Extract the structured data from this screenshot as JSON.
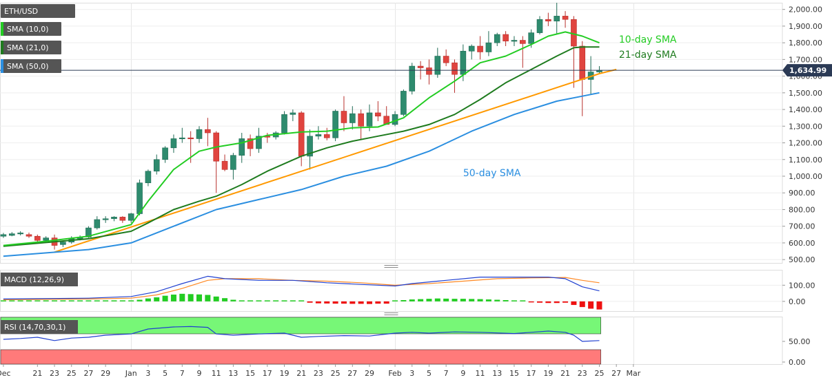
{
  "chart_data": [
    {
      "type": "candlestick",
      "labels": {
        "symbol": "ETH/USD",
        "sma10": "SMA (10,0)",
        "sma21": "SMA (21,0)",
        "sma50": "SMA (50,0)"
      },
      "annotations": {
        "sma10": "10-day SMA",
        "sma21": "21-day SMA",
        "sma50": "50-day SMA"
      },
      "last_price": 1634.99,
      "last_price_label": "1,634.99",
      "ylim": [
        480,
        2040
      ],
      "yticks": [
        500,
        600,
        700,
        800,
        900,
        1000,
        1100,
        1200,
        1300,
        1400,
        1500,
        1600,
        1700,
        1800,
        1900,
        2000
      ],
      "ytick_labels": [
        "500.00",
        "600.00",
        "700.00",
        "800.00",
        "900.00",
        "1,000.00",
        "1,100.00",
        "1,200.00",
        "1,300.00",
        "1,400.00",
        "1,500.00",
        "1,600.00",
        "1,700.00",
        "1,800.00",
        "1,900.00",
        "2,000.00"
      ],
      "xlim": [
        -0.4,
        91.5
      ],
      "xticks": [
        {
          "i": 0,
          "label": "Dec"
        },
        {
          "i": 4,
          "label": "21"
        },
        {
          "i": 6,
          "label": "23"
        },
        {
          "i": 8,
          "label": "25"
        },
        {
          "i": 10,
          "label": "27"
        },
        {
          "i": 12,
          "label": "29"
        },
        {
          "i": 15,
          "label": "Jan"
        },
        {
          "i": 17,
          "label": "3"
        },
        {
          "i": 19,
          "label": "5"
        },
        {
          "i": 21,
          "label": "7"
        },
        {
          "i": 23,
          "label": "9"
        },
        {
          "i": 25,
          "label": "11"
        },
        {
          "i": 27,
          "label": "13"
        },
        {
          "i": 29,
          "label": "15"
        },
        {
          "i": 31,
          "label": "17"
        },
        {
          "i": 33,
          "label": "19"
        },
        {
          "i": 35,
          "label": "21"
        },
        {
          "i": 37,
          "label": "23"
        },
        {
          "i": 39,
          "label": "25"
        },
        {
          "i": 41,
          "label": "27"
        },
        {
          "i": 43,
          "label": "29"
        },
        {
          "i": 46,
          "label": "Feb"
        },
        {
          "i": 48,
          "label": "3"
        },
        {
          "i": 50,
          "label": "5"
        },
        {
          "i": 52,
          "label": "7"
        },
        {
          "i": 54,
          "label": "9"
        },
        {
          "i": 56,
          "label": "11"
        },
        {
          "i": 58,
          "label": "13"
        },
        {
          "i": 60,
          "label": "15"
        },
        {
          "i": 62,
          "label": "17"
        },
        {
          "i": 64,
          "label": "19"
        },
        {
          "i": 66,
          "label": "21"
        },
        {
          "i": 68,
          "label": "23"
        },
        {
          "i": 70,
          "label": "25"
        },
        {
          "i": 72,
          "label": "27"
        },
        {
          "i": 74,
          "label": "Mar"
        }
      ],
      "month_separators": [
        15,
        46,
        74
      ],
      "candles": [
        {
          "i": 0,
          "o": 640,
          "h": 660,
          "l": 630,
          "c": 650
        },
        {
          "i": 1,
          "o": 645,
          "h": 665,
          "l": 640,
          "c": 655
        },
        {
          "i": 2,
          "o": 655,
          "h": 670,
          "l": 645,
          "c": 660
        },
        {
          "i": 3,
          "o": 650,
          "h": 662,
          "l": 630,
          "c": 640
        },
        {
          "i": 4,
          "o": 640,
          "h": 650,
          "l": 600,
          "c": 615
        },
        {
          "i": 5,
          "o": 615,
          "h": 640,
          "l": 605,
          "c": 630
        },
        {
          "i": 6,
          "o": 630,
          "h": 650,
          "l": 560,
          "c": 585
        },
        {
          "i": 7,
          "o": 590,
          "h": 615,
          "l": 575,
          "c": 605
        },
        {
          "i": 8,
          "o": 605,
          "h": 640,
          "l": 595,
          "c": 625
        },
        {
          "i": 9,
          "o": 625,
          "h": 645,
          "l": 615,
          "c": 635
        },
        {
          "i": 10,
          "o": 635,
          "h": 700,
          "l": 630,
          "c": 690
        },
        {
          "i": 11,
          "o": 690,
          "h": 760,
          "l": 680,
          "c": 740
        },
        {
          "i": 12,
          "o": 740,
          "h": 760,
          "l": 720,
          "c": 745
        },
        {
          "i": 13,
          "o": 745,
          "h": 760,
          "l": 730,
          "c": 755
        },
        {
          "i": 14,
          "o": 755,
          "h": 760,
          "l": 720,
          "c": 735
        },
        {
          "i": 15,
          "o": 735,
          "h": 780,
          "l": 720,
          "c": 775
        },
        {
          "i": 16,
          "o": 775,
          "h": 980,
          "l": 765,
          "c": 960
        },
        {
          "i": 17,
          "o": 960,
          "h": 1040,
          "l": 940,
          "c": 1030
        },
        {
          "i": 18,
          "o": 1030,
          "h": 1130,
          "l": 1010,
          "c": 1100
        },
        {
          "i": 19,
          "o": 1100,
          "h": 1180,
          "l": 1080,
          "c": 1170
        },
        {
          "i": 20,
          "o": 1170,
          "h": 1250,
          "l": 1140,
          "c": 1225
        },
        {
          "i": 21,
          "o": 1225,
          "h": 1290,
          "l": 1200,
          "c": 1230
        },
        {
          "i": 22,
          "o": 1230,
          "h": 1270,
          "l": 1080,
          "c": 1225
        },
        {
          "i": 23,
          "o": 1225,
          "h": 1300,
          "l": 1200,
          "c": 1280
        },
        {
          "i": 24,
          "o": 1280,
          "h": 1350,
          "l": 1180,
          "c": 1260
        },
        {
          "i": 25,
          "o": 1260,
          "h": 1270,
          "l": 900,
          "c": 1090
        },
        {
          "i": 26,
          "o": 1090,
          "h": 1130,
          "l": 1030,
          "c": 1040
        },
        {
          "i": 27,
          "o": 1040,
          "h": 1140,
          "l": 980,
          "c": 1125
        },
        {
          "i": 28,
          "o": 1125,
          "h": 1260,
          "l": 1080,
          "c": 1225
        },
        {
          "i": 29,
          "o": 1225,
          "h": 1250,
          "l": 1120,
          "c": 1165
        },
        {
          "i": 30,
          "o": 1165,
          "h": 1290,
          "l": 1140,
          "c": 1240
        },
        {
          "i": 31,
          "o": 1240,
          "h": 1260,
          "l": 1200,
          "c": 1235
        },
        {
          "i": 32,
          "o": 1235,
          "h": 1270,
          "l": 1220,
          "c": 1260
        },
        {
          "i": 33,
          "o": 1260,
          "h": 1390,
          "l": 1250,
          "c": 1370
        },
        {
          "i": 34,
          "o": 1370,
          "h": 1400,
          "l": 1330,
          "c": 1380
        },
        {
          "i": 35,
          "o": 1380,
          "h": 1390,
          "l": 1060,
          "c": 1120
        },
        {
          "i": 36,
          "o": 1120,
          "h": 1280,
          "l": 1040,
          "c": 1240
        },
        {
          "i": 37,
          "o": 1240,
          "h": 1300,
          "l": 1220,
          "c": 1250
        },
        {
          "i": 38,
          "o": 1250,
          "h": 1290,
          "l": 1215,
          "c": 1230
        },
        {
          "i": 39,
          "o": 1230,
          "h": 1400,
          "l": 1210,
          "c": 1390
        },
        {
          "i": 40,
          "o": 1390,
          "h": 1480,
          "l": 1270,
          "c": 1320
        },
        {
          "i": 41,
          "o": 1320,
          "h": 1420,
          "l": 1280,
          "c": 1375
        },
        {
          "i": 42,
          "o": 1375,
          "h": 1400,
          "l": 1220,
          "c": 1300
        },
        {
          "i": 43,
          "o": 1300,
          "h": 1430,
          "l": 1270,
          "c": 1380
        },
        {
          "i": 44,
          "o": 1380,
          "h": 1450,
          "l": 1330,
          "c": 1360
        },
        {
          "i": 45,
          "o": 1360,
          "h": 1420,
          "l": 1320,
          "c": 1310
        },
        {
          "i": 46,
          "o": 1310,
          "h": 1390,
          "l": 1300,
          "c": 1370
        },
        {
          "i": 47,
          "o": 1370,
          "h": 1520,
          "l": 1360,
          "c": 1510
        },
        {
          "i": 48,
          "o": 1510,
          "h": 1680,
          "l": 1490,
          "c": 1660
        },
        {
          "i": 49,
          "o": 1660,
          "h": 1690,
          "l": 1580,
          "c": 1650
        },
        {
          "i": 50,
          "o": 1650,
          "h": 1700,
          "l": 1550,
          "c": 1610
        },
        {
          "i": 51,
          "o": 1610,
          "h": 1770,
          "l": 1590,
          "c": 1720
        },
        {
          "i": 52,
          "o": 1720,
          "h": 1760,
          "l": 1660,
          "c": 1680
        },
        {
          "i": 53,
          "o": 1680,
          "h": 1700,
          "l": 1500,
          "c": 1610
        },
        {
          "i": 54,
          "o": 1610,
          "h": 1790,
          "l": 1570,
          "c": 1750
        },
        {
          "i": 55,
          "o": 1750,
          "h": 1790,
          "l": 1700,
          "c": 1780
        },
        {
          "i": 56,
          "o": 1780,
          "h": 1840,
          "l": 1700,
          "c": 1745
        },
        {
          "i": 57,
          "o": 1745,
          "h": 1870,
          "l": 1720,
          "c": 1800
        },
        {
          "i": 58,
          "o": 1800,
          "h": 1860,
          "l": 1780,
          "c": 1850
        },
        {
          "i": 59,
          "o": 1850,
          "h": 1870,
          "l": 1780,
          "c": 1810
        },
        {
          "i": 60,
          "o": 1810,
          "h": 1840,
          "l": 1780,
          "c": 1815
        },
        {
          "i": 61,
          "o": 1815,
          "h": 1840,
          "l": 1650,
          "c": 1795
        },
        {
          "i": 62,
          "o": 1795,
          "h": 1880,
          "l": 1770,
          "c": 1860
        },
        {
          "i": 63,
          "o": 1860,
          "h": 1960,
          "l": 1850,
          "c": 1940
        },
        {
          "i": 64,
          "o": 1940,
          "h": 1980,
          "l": 1900,
          "c": 1930
        },
        {
          "i": 65,
          "o": 1930,
          "h": 2040,
          "l": 1850,
          "c": 1960
        },
        {
          "i": 66,
          "o": 1960,
          "h": 1990,
          "l": 1890,
          "c": 1940
        },
        {
          "i": 67,
          "o": 1940,
          "h": 1960,
          "l": 1530,
          "c": 1780
        },
        {
          "i": 68,
          "o": 1780,
          "h": 1810,
          "l": 1360,
          "c": 1580
        },
        {
          "i": 69,
          "o": 1580,
          "h": 1720,
          "l": 1490,
          "c": 1625
        },
        {
          "i": 70,
          "o": 1625,
          "h": 1660,
          "l": 1615,
          "c": 1635
        }
      ],
      "series": [
        {
          "name": "SMA (10,0)",
          "color": "#22cc22",
          "x": [
            0,
            5,
            10,
            15,
            17,
            20,
            23,
            25,
            28,
            31,
            35,
            38,
            41,
            44,
            47,
            50,
            53,
            56,
            59,
            62,
            64,
            66,
            68,
            70
          ],
          "y": [
            585,
            610,
            640,
            710,
            850,
            1040,
            1150,
            1175,
            1200,
            1245,
            1265,
            1270,
            1290,
            1295,
            1350,
            1470,
            1570,
            1680,
            1720,
            1790,
            1840,
            1865,
            1840,
            1800
          ]
        },
        {
          "name": "SMA (21,0)",
          "color": "#1e7b1e",
          "x": [
            0,
            10,
            15,
            17,
            20,
            23,
            25,
            28,
            31,
            35,
            38,
            41,
            44,
            47,
            50,
            53,
            56,
            59,
            62,
            65,
            67,
            68,
            70
          ],
          "y": [
            580,
            625,
            670,
            720,
            800,
            850,
            880,
            950,
            1030,
            1120,
            1170,
            1210,
            1240,
            1270,
            1310,
            1370,
            1460,
            1560,
            1640,
            1720,
            1770,
            1775,
            1775
          ]
        },
        {
          "name": "SMA (50,0)",
          "color": "#2a8ee0",
          "x": [
            0,
            10,
            15,
            20,
            25,
            30,
            35,
            40,
            45,
            50,
            55,
            60,
            65,
            68,
            70
          ],
          "y": [
            520,
            560,
            600,
            700,
            800,
            860,
            920,
            1000,
            1060,
            1150,
            1270,
            1370,
            1450,
            1480,
            1500
          ]
        },
        {
          "name": "Trendline",
          "color": "#ff9900",
          "x": [
            6,
            70,
            72
          ],
          "y": [
            545,
            1615,
            1640
          ]
        }
      ]
    },
    {
      "type": "bar+line",
      "label": "MACD (12,26,9)",
      "ylim": [
        -60,
        195
      ],
      "yticks": [
        0,
        100
      ],
      "ytick_labels": [
        "0.00",
        "100.00"
      ],
      "histogram": [
        0,
        0,
        0,
        0,
        0,
        0,
        0,
        2,
        3,
        3,
        0,
        0,
        3,
        3,
        4,
        5,
        10,
        18,
        25,
        35,
        42,
        47,
        45,
        43,
        40,
        30,
        20,
        10,
        5,
        2,
        1,
        0,
        1,
        1,
        1,
        1,
        -8,
        -12,
        -13,
        -14,
        -14,
        -15,
        -15,
        -16,
        -14,
        -14,
        0,
        8,
        12,
        14,
        16,
        18,
        17,
        16,
        16,
        15,
        14,
        12,
        10,
        8,
        5,
        3,
        -5,
        -8,
        -10,
        -10,
        -8,
        -22,
        -35,
        -45,
        -50
      ],
      "series": [
        {
          "name": "MACD",
          "color": "#1f3fd0",
          "x": [
            0,
            10,
            15,
            18,
            21,
            24,
            26,
            30,
            34,
            38,
            42,
            46,
            48,
            52,
            56,
            60,
            64,
            66,
            68,
            70
          ],
          "y": [
            15,
            20,
            30,
            60,
            110,
            155,
            140,
            130,
            130,
            115,
            105,
            95,
            110,
            130,
            150,
            150,
            150,
            140,
            90,
            65
          ]
        },
        {
          "name": "Signal",
          "color": "#ff8822",
          "x": [
            0,
            10,
            15,
            18,
            21,
            24,
            26,
            30,
            34,
            38,
            42,
            46,
            50,
            54,
            58,
            62,
            66,
            68,
            70
          ],
          "y": [
            10,
            15,
            20,
            40,
            80,
            130,
            140,
            140,
            130,
            125,
            115,
            100,
            110,
            125,
            140,
            145,
            148,
            130,
            115
          ]
        }
      ]
    },
    {
      "type": "line",
      "label": "RSI (14,70,30,1)",
      "ylim": [
        -5,
        110
      ],
      "yticks": [
        0,
        50
      ],
      "ytick_labels": [
        "0.00",
        "50.00"
      ],
      "overbought": 70,
      "oversold": 30,
      "series": [
        {
          "name": "RSI",
          "color": "#1f3fd0",
          "x": [
            0,
            2,
            4,
            6,
            8,
            10,
            12,
            15,
            17,
            20,
            22,
            24,
            25,
            27,
            30,
            33,
            35,
            37,
            40,
            43,
            46,
            48,
            50,
            53,
            56,
            60,
            62,
            64,
            66,
            67,
            68,
            70
          ],
          "y": [
            55,
            57,
            60,
            52,
            58,
            60,
            65,
            68,
            80,
            85,
            86,
            84,
            68,
            65,
            68,
            70,
            60,
            62,
            64,
            63,
            70,
            72,
            70,
            73,
            72,
            69,
            72,
            75,
            72,
            65,
            50,
            52
          ]
        }
      ]
    }
  ]
}
